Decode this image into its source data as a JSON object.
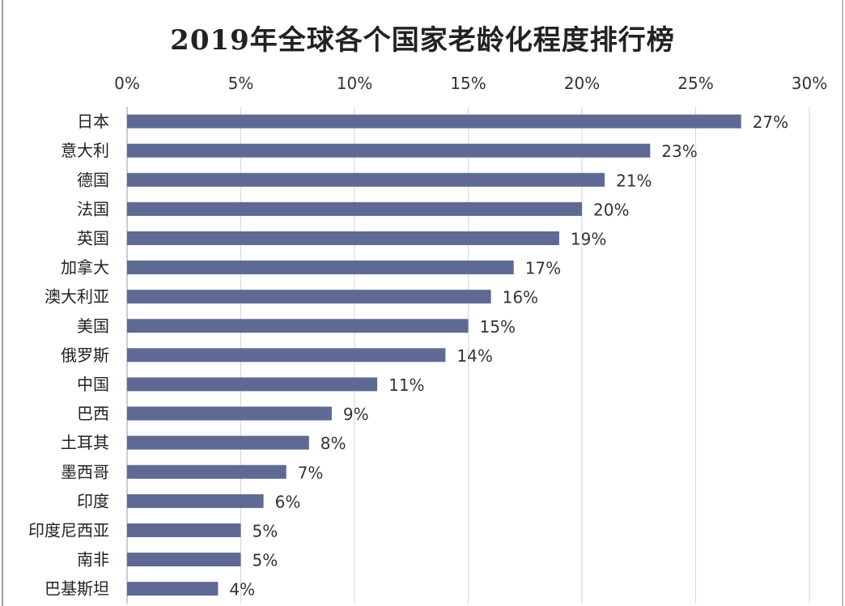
{
  "chart_data": {
    "type": "bar",
    "orientation": "horizontal",
    "title": "2019年全球各个国家老龄化程度排行榜",
    "categories": [
      "日本",
      "意大利",
      "德国",
      "法国",
      "英国",
      "加拿大",
      "澳大利亚",
      "美国",
      "俄罗斯",
      "中国",
      "巴西",
      "土耳其",
      "墨西哥",
      "印度",
      "印度尼西亚",
      "南非",
      "巴基斯坦"
    ],
    "values": [
      27,
      23,
      21,
      20,
      19,
      17,
      16,
      15,
      14,
      11,
      9,
      8,
      7,
      6,
      5,
      5,
      4
    ],
    "data_labels": [
      "27%",
      "23%",
      "21%",
      "20%",
      "19%",
      "17%",
      "16%",
      "15%",
      "14%",
      "11%",
      "9%",
      "8%",
      "7%",
      "6%",
      "5%",
      "5%",
      "4%"
    ],
    "xlim": [
      0,
      30
    ],
    "x_ticks": [
      0,
      5,
      10,
      15,
      20,
      25,
      30
    ],
    "x_tick_labels": [
      "0%",
      "5%",
      "10%",
      "15%",
      "20%",
      "25%",
      "30%"
    ],
    "x_axis_position": "top",
    "grid": "vertical",
    "bar_color": "#5f6a94",
    "xlabel": "",
    "ylabel": ""
  }
}
